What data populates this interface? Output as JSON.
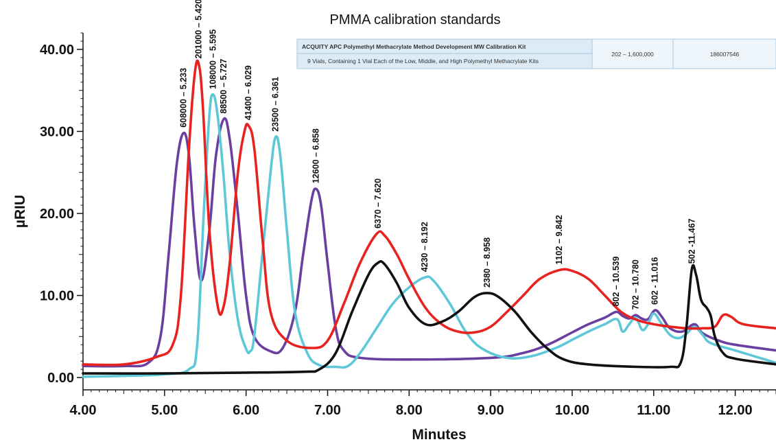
{
  "chart_data": {
    "type": "line",
    "title": "PMMA calibration standards",
    "xlabel": "Minutes",
    "ylabel": "µRIU",
    "xlim": [
      4.0,
      12.5
    ],
    "ylim": [
      -1.5,
      42.0
    ],
    "xticks": [
      4.0,
      5.0,
      6.0,
      7.0,
      8.0,
      9.0,
      10.0,
      11.0,
      12.0
    ],
    "xtick_labels": [
      "4.00",
      "5.00",
      "6.00",
      "7.00",
      "8.00",
      "9.00",
      "10.00",
      "11.00",
      "12.00"
    ],
    "yticks": [
      0,
      10,
      20,
      30,
      40
    ],
    "ytick_labels": [
      "0.00",
      "10.00",
      "20.00",
      "30.00",
      "40.00"
    ],
    "grid": false,
    "legend": "none",
    "colors": {
      "purple": "#6a3fa0",
      "red": "#e8231f",
      "cyan": "#5ec8d8",
      "black": "#111111"
    },
    "series": [
      {
        "color": "#6a3fa0",
        "points": [
          [
            4.0,
            1.4
          ],
          [
            4.5,
            1.4
          ],
          [
            4.8,
            1.8
          ],
          [
            4.95,
            5
          ],
          [
            5.05,
            15
          ],
          [
            5.15,
            26
          ],
          [
            5.233,
            29.8
          ],
          [
            5.3,
            27
          ],
          [
            5.37,
            18
          ],
          [
            5.45,
            11.8
          ],
          [
            5.55,
            18
          ],
          [
            5.63,
            27
          ],
          [
            5.727,
            31.5
          ],
          [
            5.8,
            29
          ],
          [
            5.9,
            20
          ],
          [
            6.0,
            10
          ],
          [
            6.1,
            5
          ],
          [
            6.3,
            3.2
          ],
          [
            6.45,
            3.6
          ],
          [
            6.6,
            8
          ],
          [
            6.7,
            15
          ],
          [
            6.8,
            21.5
          ],
          [
            6.858,
            23
          ],
          [
            6.92,
            21
          ],
          [
            7.0,
            14
          ],
          [
            7.1,
            6
          ],
          [
            7.2,
            3.3
          ],
          [
            7.4,
            2.4
          ],
          [
            8.0,
            2.2
          ],
          [
            9.0,
            2.4
          ],
          [
            9.4,
            3
          ],
          [
            9.7,
            4
          ],
          [
            10.0,
            5.5
          ],
          [
            10.2,
            6.5
          ],
          [
            10.4,
            7.3
          ],
          [
            10.539,
            8
          ],
          [
            10.62,
            7.5
          ],
          [
            10.7,
            7.2
          ],
          [
            10.78,
            7.6
          ],
          [
            10.85,
            7.2
          ],
          [
            10.93,
            7.1
          ],
          [
            11.016,
            8.2
          ],
          [
            11.1,
            7.4
          ],
          [
            11.2,
            6
          ],
          [
            11.35,
            5.6
          ],
          [
            11.5,
            6.5
          ],
          [
            11.6,
            5.4
          ],
          [
            11.8,
            4.5
          ],
          [
            12.0,
            4
          ],
          [
            12.5,
            3.3
          ]
        ]
      },
      {
        "color": "#e8231f",
        "points": [
          [
            4.0,
            1.6
          ],
          [
            4.5,
            1.6
          ],
          [
            4.9,
            2.5
          ],
          [
            5.1,
            4
          ],
          [
            5.2,
            10
          ],
          [
            5.3,
            28
          ],
          [
            5.37,
            37
          ],
          [
            5.42,
            38.2
          ],
          [
            5.47,
            33
          ],
          [
            5.55,
            18
          ],
          [
            5.65,
            8.8
          ],
          [
            5.72,
            8.5
          ],
          [
            5.8,
            14
          ],
          [
            5.9,
            25
          ],
          [
            5.98,
            30
          ],
          [
            6.03,
            30.7
          ],
          [
            6.1,
            28
          ],
          [
            6.2,
            17
          ],
          [
            6.3,
            8
          ],
          [
            6.5,
            4.5
          ],
          [
            6.8,
            3.6
          ],
          [
            7.0,
            4.5
          ],
          [
            7.2,
            9
          ],
          [
            7.4,
            14
          ],
          [
            7.6,
            17.5
          ],
          [
            7.7,
            17.3
          ],
          [
            7.85,
            15
          ],
          [
            8.0,
            12
          ],
          [
            8.2,
            8.5
          ],
          [
            8.4,
            6.5
          ],
          [
            8.6,
            5.6
          ],
          [
            8.8,
            5.5
          ],
          [
            9.0,
            6.2
          ],
          [
            9.2,
            8
          ],
          [
            9.4,
            10
          ],
          [
            9.6,
            12
          ],
          [
            9.842,
            13.1
          ],
          [
            10.0,
            13
          ],
          [
            10.2,
            12
          ],
          [
            10.4,
            10
          ],
          [
            10.6,
            8
          ],
          [
            10.8,
            7
          ],
          [
            11.0,
            6.5
          ],
          [
            11.2,
            6.2
          ],
          [
            11.4,
            6
          ],
          [
            11.6,
            6
          ],
          [
            11.75,
            6.2
          ],
          [
            11.85,
            7.6
          ],
          [
            11.95,
            7.4
          ],
          [
            12.1,
            6.5
          ],
          [
            12.5,
            6
          ]
        ]
      },
      {
        "color": "#5ec8d8",
        "points": [
          [
            4.0,
            0.1
          ],
          [
            4.5,
            0.2
          ],
          [
            5.0,
            0.4
          ],
          [
            5.3,
            1
          ],
          [
            5.4,
            4
          ],
          [
            5.48,
            20
          ],
          [
            5.55,
            32
          ],
          [
            5.595,
            34.5
          ],
          [
            5.65,
            32
          ],
          [
            5.72,
            25
          ],
          [
            5.8,
            15
          ],
          [
            5.9,
            7
          ],
          [
            6.0,
            3.5
          ],
          [
            6.05,
            3.2
          ],
          [
            6.1,
            5
          ],
          [
            6.2,
            15
          ],
          [
            6.3,
            25
          ],
          [
            6.361,
            29.3
          ],
          [
            6.42,
            27
          ],
          [
            6.5,
            18
          ],
          [
            6.6,
            8
          ],
          [
            6.75,
            3
          ],
          [
            6.9,
            1.5
          ],
          [
            7.1,
            1.3
          ],
          [
            7.25,
            1.4
          ],
          [
            7.4,
            3
          ],
          [
            7.6,
            6
          ],
          [
            7.8,
            9
          ],
          [
            8.0,
            11
          ],
          [
            8.192,
            12.2
          ],
          [
            8.3,
            11.8
          ],
          [
            8.5,
            9
          ],
          [
            8.7,
            5.5
          ],
          [
            8.9,
            3.5
          ],
          [
            9.2,
            2.4
          ],
          [
            9.5,
            2.6
          ],
          [
            9.8,
            3.6
          ],
          [
            10.0,
            4.6
          ],
          [
            10.2,
            5.6
          ],
          [
            10.4,
            6.5
          ],
          [
            10.55,
            7.1
          ],
          [
            10.62,
            5.6
          ],
          [
            10.7,
            6.5
          ],
          [
            10.78,
            7.3
          ],
          [
            10.86,
            5.8
          ],
          [
            10.93,
            6.5
          ],
          [
            11.0,
            7.8
          ],
          [
            11.1,
            6.5
          ],
          [
            11.2,
            5.2
          ],
          [
            11.3,
            4.8
          ],
          [
            11.4,
            5.3
          ],
          [
            11.5,
            6.2
          ],
          [
            11.6,
            5.2
          ],
          [
            11.7,
            4.2
          ],
          [
            12.0,
            3.3
          ],
          [
            12.5,
            1.8
          ]
        ]
      },
      {
        "color": "#111111",
        "points": [
          [
            4.0,
            0.5
          ],
          [
            5.0,
            0.5
          ],
          [
            6.0,
            0.6
          ],
          [
            6.7,
            0.7
          ],
          [
            6.9,
            1
          ],
          [
            7.1,
            3
          ],
          [
            7.3,
            8
          ],
          [
            7.5,
            12.5
          ],
          [
            7.62,
            14
          ],
          [
            7.7,
            13.8
          ],
          [
            7.85,
            11.5
          ],
          [
            8.0,
            8.5
          ],
          [
            8.2,
            6.5
          ],
          [
            8.4,
            6.8
          ],
          [
            8.6,
            8
          ],
          [
            8.8,
            9.8
          ],
          [
            8.958,
            10.3
          ],
          [
            9.1,
            9.8
          ],
          [
            9.3,
            8
          ],
          [
            9.5,
            5.5
          ],
          [
            9.7,
            3.5
          ],
          [
            9.9,
            2.2
          ],
          [
            10.2,
            1.6
          ],
          [
            10.8,
            1.3
          ],
          [
            11.2,
            1.3
          ],
          [
            11.33,
            1.8
          ],
          [
            11.4,
            6
          ],
          [
            11.467,
            13.2
          ],
          [
            11.52,
            12.5
          ],
          [
            11.58,
            9.5
          ],
          [
            11.65,
            8.5
          ],
          [
            11.7,
            7.5
          ],
          [
            11.75,
            5
          ],
          [
            11.85,
            3
          ],
          [
            12.0,
            2.3
          ],
          [
            12.5,
            1.6
          ]
        ]
      }
    ],
    "annotations": [
      {
        "text": "608000 – 5.233",
        "x": 5.233,
        "y": 29.8
      },
      {
        "text": "201000 – 5.420",
        "x": 5.42,
        "y": 38.2
      },
      {
        "text": "108000 – 5.595",
        "x": 5.595,
        "y": 34.5
      },
      {
        "text": "88500 – 5.727",
        "x": 5.727,
        "y": 31.5
      },
      {
        "text": "41400 – 6.029",
        "x": 6.029,
        "y": 30.7
      },
      {
        "text": "23500 – 6.361",
        "x": 6.361,
        "y": 29.3
      },
      {
        "text": "12600 – 6.858",
        "x": 6.858,
        "y": 23.0
      },
      {
        "text": "6370 – 7.620",
        "x": 7.62,
        "y": 17.5
      },
      {
        "text": "4230 – 8.192",
        "x": 8.192,
        "y": 12.2
      },
      {
        "text": "2380 – 8.958",
        "x": 8.958,
        "y": 10.3
      },
      {
        "text": "1102 – 9.842",
        "x": 9.842,
        "y": 13.1
      },
      {
        "text": "802 – 10.539",
        "x": 10.539,
        "y": 8.0
      },
      {
        "text": "702 – 10.780",
        "x": 10.78,
        "y": 7.6
      },
      {
        "text": "602 - 11.016",
        "x": 11.016,
        "y": 8.2
      },
      {
        "text": "502 -11.467",
        "x": 11.467,
        "y": 13.2
      }
    ]
  },
  "inset_table": {
    "product_name": "ACQUITY APC Polymethyl Methacrylate Method Development MW Calibration Kit",
    "product_desc": "9 Vials, Containing 1 Vial Each of the Low, Middle, and High Polymethyl Methacrylate Kits",
    "mw_range": "202 – 1,600,000",
    "part_number": "186007546"
  }
}
